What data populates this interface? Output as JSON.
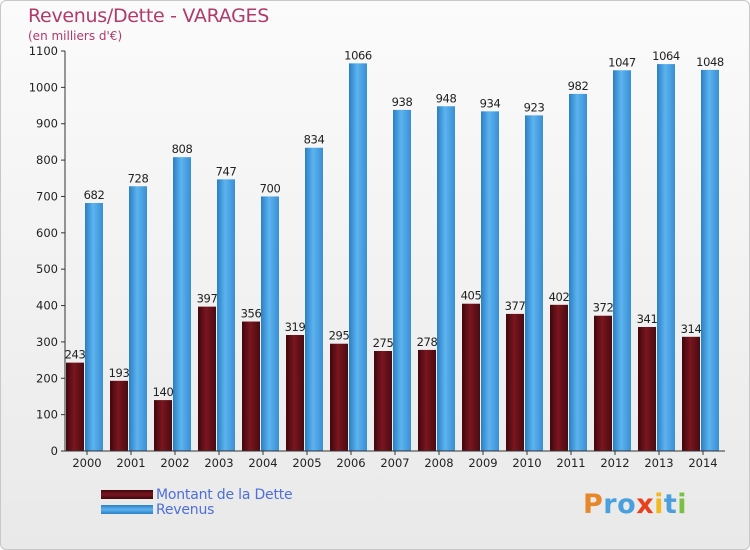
{
  "title": "Revenus/Dette - VARAGES",
  "subtitle": "(en milliers d'€)",
  "logo": {
    "letters": [
      "P",
      "r",
      "o",
      "x",
      "i",
      "t",
      "i"
    ],
    "colors": [
      "#e8862a",
      "#4aa0dd",
      "#4aa0dd",
      "#e8401c",
      "#f2b820",
      "#4aa0dd",
      "#7ac143"
    ]
  },
  "chart_data": {
    "type": "bar",
    "categories": [
      "2000",
      "2001",
      "2002",
      "2003",
      "2004",
      "2005",
      "2006",
      "2007",
      "2008",
      "2009",
      "2010",
      "2011",
      "2012",
      "2013",
      "2014"
    ],
    "series": [
      {
        "name": "Montant de la Dette",
        "color": "#6b0f18",
        "values": [
          243,
          193,
          140,
          397,
          356,
          319,
          295,
          275,
          278,
          405,
          377,
          402,
          372,
          341,
          314
        ]
      },
      {
        "name": "Revenus",
        "color": "#4aa3e6",
        "values": [
          682,
          728,
          808,
          747,
          700,
          834,
          1066,
          938,
          948,
          934,
          923,
          982,
          1047,
          1064,
          1048
        ]
      }
    ],
    "ylim": [
      0,
      1100
    ],
    "yticks": [
      0,
      100,
      200,
      300,
      400,
      500,
      600,
      700,
      800,
      900,
      1000,
      1100
    ],
    "grid": false,
    "legend_position": "bottom-left"
  }
}
